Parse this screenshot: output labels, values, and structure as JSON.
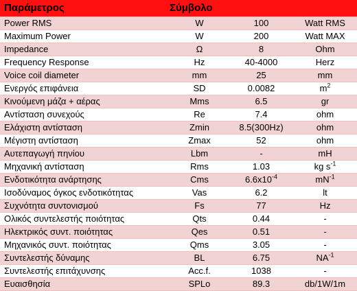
{
  "header": {
    "param": "Παράμετρος",
    "symbol": "Σύμβολο"
  },
  "rows": [
    {
      "param": "Power RMS",
      "symbol": "W",
      "value": "100",
      "unit": "Watt RMS"
    },
    {
      "param": "Maximum Power",
      "symbol": "W",
      "value": "200",
      "unit": "Watt MAX"
    },
    {
      "param": "Impedance",
      "symbol": "Ω",
      "value": "8",
      "unit": "Ohm"
    },
    {
      "param": "Frequency Response",
      "symbol": "Hz",
      "value": "40-4000",
      "unit": "Herz"
    },
    {
      "param": "Voice coil diameter",
      "symbol": "mm",
      "value": "25",
      "unit": "mm"
    },
    {
      "param": "Ενεργός επιφάνεια",
      "symbol": "SD",
      "value": "0.0082",
      "unit": "m",
      "unit_sup": "2"
    },
    {
      "param": "Κινούμενη μάζα + αέρας",
      "symbol": "Mms",
      "value": "6.5",
      "unit": "gr"
    },
    {
      "param": "Αντίσταση συνεχούς",
      "symbol": "Re",
      "value": "7.4",
      "unit": "ohm"
    },
    {
      "param": "Ελάχιστη αντίσταση",
      "symbol": "Zmin",
      "value": "8.5(300Hz)",
      "unit": "ohm"
    },
    {
      "param": "Μέγιστη αντίσταση",
      "symbol": "Zmax",
      "value": "52",
      "unit": "ohm"
    },
    {
      "param": "Αυτεπαγωγή πηνίου",
      "symbol": "Lbm",
      "value": "-",
      "unit": "mH"
    },
    {
      "param": "Μηχανική αντίσταση",
      "symbol": "Rms",
      "value": "1.03",
      "unit": "kg s",
      "unit_sup": "-1"
    },
    {
      "param": "Ενδοτικότητα ανάρτησης",
      "symbol": "Cms",
      "value": "6.6x10",
      "value_sup": "-4",
      "unit": "mN",
      "unit_sup": "-1"
    },
    {
      "param": "Ισοδύναμος όγκος ενδοτικότητας",
      "symbol": "Vas",
      "value": "6.2",
      "unit": "lt"
    },
    {
      "param": "Συχνότητα συντονισμού",
      "symbol": "Fs",
      "value": "77",
      "unit": "Hz"
    },
    {
      "param": "Ολικός συντελεστής ποιότητας",
      "symbol": "Qts",
      "value": "0.44",
      "unit": "-"
    },
    {
      "param": "Ηλεκτρικός συντ. ποιότητας",
      "symbol": "Qes",
      "value": "0.51",
      "unit": "-"
    },
    {
      "param": "Μηχανικός συντ. ποιότητας",
      "symbol": "Qms",
      "value": "3.05",
      "unit": "-"
    },
    {
      "param": "Συντελεστής δύναμης",
      "symbol": "BL",
      "value": "6.75",
      "unit": "NA",
      "unit_sup": "-1"
    },
    {
      "param": "Συντελεστής επιτάχυνσης",
      "symbol": "Acc.f.",
      "value": "1038",
      "unit": "-"
    },
    {
      "param": "Ευαισθησία",
      "symbol": "SPLo",
      "value": "89.3",
      "unit": "db/1W/1m"
    }
  ],
  "colors": {
    "header_bg": "#ff0f0f",
    "stripe_bg": "#f2d3d3",
    "plain_bg": "#ffffff"
  }
}
